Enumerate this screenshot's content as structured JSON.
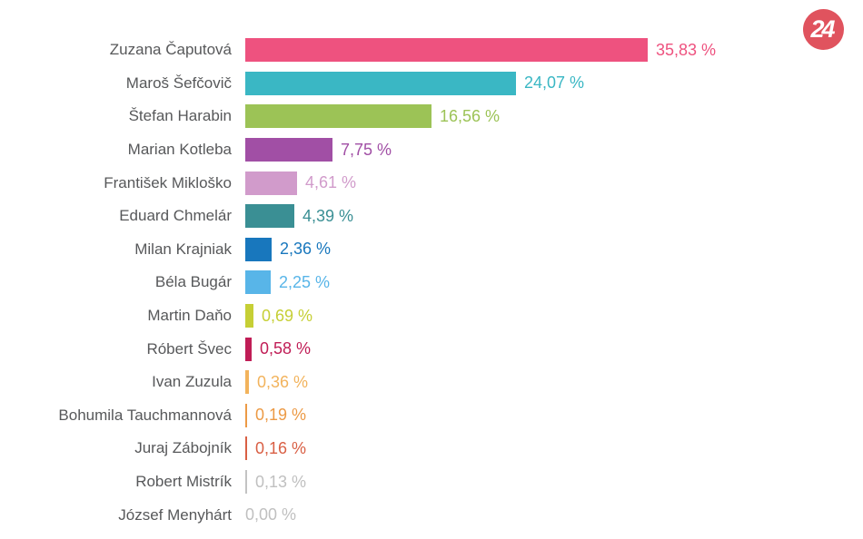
{
  "logo": {
    "text": "24",
    "bg_color": "#e0535e",
    "text_color": "#ffffff"
  },
  "chart_data": {
    "type": "bar",
    "orientation": "horizontal",
    "title": "",
    "xlabel": "",
    "ylabel": "",
    "xlim": [
      0,
      36
    ],
    "grid": false,
    "legend": false,
    "value_format": "comma-decimal percent",
    "categories": [
      "Zuzana Čaputová",
      "Maroš Šefčovič",
      "Štefan Harabin",
      "Marian Kotleba",
      "František Mikloško",
      "Eduard Chmelár",
      "Milan Krajniak",
      "Béla Bugár",
      "Martin Daňo",
      "Róbert Švec",
      "Ivan Zuzula",
      "Bohumila Tauchmannová",
      "Juraj Zábojník",
      "Robert Mistrík",
      "József Menyhárt"
    ],
    "values": [
      35.83,
      24.07,
      16.56,
      7.75,
      4.61,
      4.39,
      2.36,
      2.25,
      0.69,
      0.58,
      0.36,
      0.19,
      0.16,
      0.13,
      0.0
    ],
    "value_labels": [
      "35,83 %",
      "24,07 %",
      "16,56 %",
      "7,75 %",
      "4,61 %",
      "4,39 %",
      "2,36 %",
      "2,25 %",
      "0,69 %",
      "0,58 %",
      "0,36 %",
      "0,19 %",
      "0,16 %",
      "0,13 %",
      "0,00 %"
    ],
    "bar_colors": [
      "#ee527f",
      "#3ab7c4",
      "#9cc356",
      "#a14fa5",
      "#d19bcb",
      "#3a8f94",
      "#1877bd",
      "#58b5e8",
      "#c6cf35",
      "#c01d56",
      "#f2b35c",
      "#ec9a45",
      "#d95f44",
      "#c3c3c3",
      "#c3c3c3"
    ],
    "value_text_colors": [
      "#ee527f",
      "#3ab7c4",
      "#9cc356",
      "#a14fa5",
      "#d19bcb",
      "#3a8f94",
      "#1877bd",
      "#58b5e8",
      "#c6cf35",
      "#c01d56",
      "#f2b35c",
      "#ec9a45",
      "#d95f44",
      "#c0c0c0",
      "#c0c0c0"
    ],
    "category_label_color": "#57585a"
  }
}
